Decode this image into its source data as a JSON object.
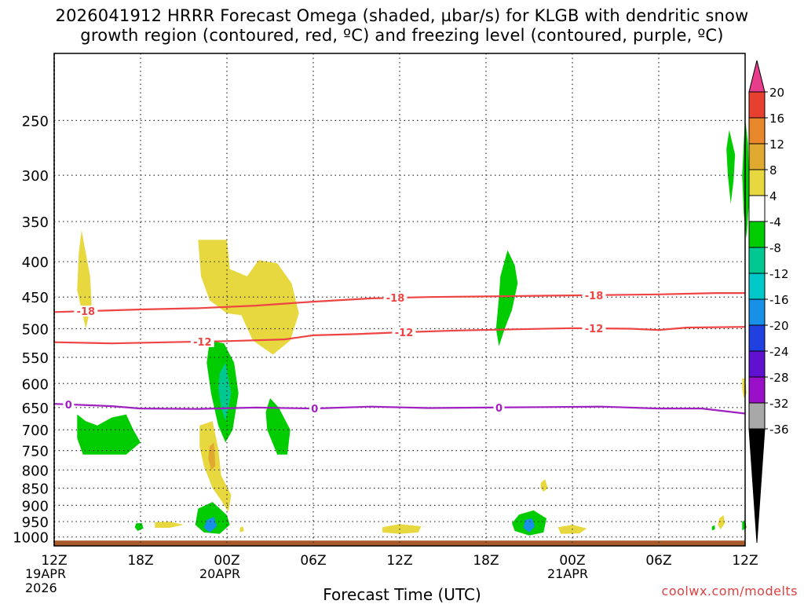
{
  "title_line1": "2026041912 HRRR Forecast Omega (shaded, µbar/s) for KLGB with dendritic snow",
  "title_line2": "growth region (contoured, red, ºC) and freezing level (contoured, purple, ºC)",
  "xlabel": "Forecast Time (UTC)",
  "credit": "coolwx.com/modelts",
  "date_labels": [
    {
      "line1": "19APR",
      "line2": "2026"
    },
    {
      "line1": "20APR",
      "line2": ""
    },
    {
      "line1": "21APR",
      "line2": ""
    }
  ],
  "chart_data": {
    "type": "heatmap",
    "x_unit": "forecast hour",
    "xlim": [
      0,
      48
    ],
    "xticks": [
      {
        "x": 0,
        "label": "12Z"
      },
      {
        "x": 6,
        "label": "18Z"
      },
      {
        "x": 12,
        "label": "00Z"
      },
      {
        "x": 18,
        "label": "06Z"
      },
      {
        "x": 24,
        "label": "12Z"
      },
      {
        "x": 30,
        "label": "18Z"
      },
      {
        "x": 36,
        "label": "00Z"
      },
      {
        "x": 42,
        "label": "06Z"
      },
      {
        "x": 48,
        "label": "12Z"
      }
    ],
    "y_unit": "hPa",
    "yscale": "log",
    "ylim": [
      1030,
      200
    ],
    "yticks": [
      250,
      300,
      350,
      400,
      450,
      500,
      550,
      600,
      650,
      700,
      750,
      800,
      850,
      900,
      950,
      1000
    ],
    "grid": true,
    "colorbar": {
      "levels": [
        20,
        16,
        12,
        8,
        4,
        -4,
        -8,
        -12,
        -16,
        -20,
        -24,
        -28,
        -32,
        -36
      ],
      "colors": [
        "#e83c8c",
        "#e84030",
        "#e8882a",
        "#e0aa30",
        "#e8d840",
        "#ffffff",
        "#00cc00",
        "#00c890",
        "#00c8c8",
        "#1890e8",
        "#2040e0",
        "#6010d0",
        "#9a10c8",
        "#a8a8a8",
        "#000000"
      ]
    },
    "contours": [
      {
        "label": "-18",
        "color": "#ee4444",
        "points": [
          [
            0,
            473
          ],
          [
            3,
            471
          ],
          [
            6,
            469
          ],
          [
            10,
            467
          ],
          [
            14,
            463
          ],
          [
            18,
            457
          ],
          [
            22,
            452
          ],
          [
            26,
            450
          ],
          [
            30,
            449
          ],
          [
            34,
            448
          ],
          [
            38,
            447
          ],
          [
            42,
            446
          ],
          [
            46,
            444
          ],
          [
            48,
            444
          ]
        ],
        "label_x": [
          2.2,
          23.7,
          37.5
        ]
      },
      {
        "label": "-12",
        "color": "#ee4444",
        "points": [
          [
            0,
            523
          ],
          [
            4,
            525
          ],
          [
            8,
            523
          ],
          [
            12,
            521
          ],
          [
            16,
            518
          ],
          [
            18,
            511
          ],
          [
            21,
            509
          ],
          [
            24,
            506
          ],
          [
            28,
            503
          ],
          [
            32,
            501
          ],
          [
            36,
            499
          ],
          [
            40,
            500
          ],
          [
            42,
            502
          ],
          [
            44,
            498
          ],
          [
            48,
            497
          ]
        ],
        "label_x": [
          10.3,
          24.3,
          37.5
        ]
      },
      {
        "label": "0",
        "color": "#a020c0",
        "points": [
          [
            0,
            642
          ],
          [
            4,
            647
          ],
          [
            6,
            652
          ],
          [
            10,
            653
          ],
          [
            14,
            650
          ],
          [
            18,
            652
          ],
          [
            22,
            648
          ],
          [
            26,
            651
          ],
          [
            30,
            650
          ],
          [
            34,
            649
          ],
          [
            38,
            648
          ],
          [
            42,
            652
          ],
          [
            45,
            652
          ],
          [
            48,
            663
          ]
        ],
        "label_x": [
          1,
          18.1,
          30.9
        ]
      }
    ],
    "omega_areas": [
      {
        "color": "#e8d840",
        "points": [
          [
            1.9,
            360
          ],
          [
            2.5,
            420
          ],
          [
            2.6,
            460
          ],
          [
            2.2,
            500
          ],
          [
            1.6,
            440
          ],
          [
            1.7,
            390
          ]
        ]
      },
      {
        "color": "#e8d840",
        "points": [
          [
            10.0,
            372
          ],
          [
            12.0,
            372
          ],
          [
            12.2,
            410
          ],
          [
            13.4,
            420
          ],
          [
            14.2,
            398
          ],
          [
            15.5,
            402
          ],
          [
            16.5,
            430
          ],
          [
            17.0,
            475
          ],
          [
            16.4,
            520
          ],
          [
            15.2,
            545
          ],
          [
            13.8,
            520
          ],
          [
            13.0,
            478
          ],
          [
            12.0,
            475
          ],
          [
            10.8,
            455
          ],
          [
            10.2,
            420
          ]
        ]
      },
      {
        "color": "#e8d840",
        "points": [
          [
            10.1,
            690
          ],
          [
            11.0,
            680
          ],
          [
            11.4,
            745
          ],
          [
            11.6,
            815
          ],
          [
            12.3,
            870
          ],
          [
            12.1,
            920
          ],
          [
            11.6,
            885
          ],
          [
            11.0,
            850
          ],
          [
            10.4,
            790
          ],
          [
            10.1,
            740
          ]
        ]
      },
      {
        "color": "#e0aa30",
        "points": [
          [
            10.8,
            740
          ],
          [
            11.1,
            730
          ],
          [
            11.2,
            790
          ],
          [
            10.9,
            800
          ],
          [
            10.7,
            770
          ]
        ]
      },
      {
        "color": "#00cc00",
        "points": [
          [
            10.8,
            520
          ],
          [
            11.8,
            525
          ],
          [
            12.5,
            560
          ],
          [
            12.8,
            620
          ],
          [
            12.4,
            700
          ],
          [
            11.9,
            730
          ],
          [
            11.4,
            690
          ],
          [
            10.9,
            620
          ],
          [
            10.6,
            560
          ]
        ]
      },
      {
        "color": "#00c890",
        "points": [
          [
            11.5,
            580
          ],
          [
            11.9,
            560
          ],
          [
            12.3,
            620
          ],
          [
            11.9,
            680
          ],
          [
            11.6,
            650
          ],
          [
            11.4,
            610
          ]
        ]
      },
      {
        "color": "#00cc00",
        "points": [
          [
            15.0,
            630
          ],
          [
            15.6,
            650
          ],
          [
            16.4,
            700
          ],
          [
            16.2,
            760
          ],
          [
            15.5,
            760
          ],
          [
            14.8,
            700
          ],
          [
            14.7,
            660
          ]
        ]
      },
      {
        "color": "#00cc00",
        "points": [
          [
            1.6,
            665
          ],
          [
            2.2,
            680
          ],
          [
            3.0,
            690
          ],
          [
            4.0,
            672
          ],
          [
            5.0,
            665
          ],
          [
            5.5,
            700
          ],
          [
            6.0,
            730
          ],
          [
            5.0,
            760
          ],
          [
            3.5,
            760
          ],
          [
            2.0,
            760
          ],
          [
            1.6,
            720
          ]
        ]
      },
      {
        "color": "#00cc00",
        "points": [
          [
            31.5,
            385
          ],
          [
            32.0,
            405
          ],
          [
            32.2,
            430
          ],
          [
            31.8,
            470
          ],
          [
            31.3,
            500
          ],
          [
            30.9,
            530
          ],
          [
            30.7,
            500
          ],
          [
            30.9,
            450
          ],
          [
            31.0,
            420
          ]
        ]
      },
      {
        "color": "#00cc00",
        "points": [
          [
            46.9,
            258
          ],
          [
            47.3,
            280
          ],
          [
            47.2,
            305
          ],
          [
            47.0,
            330
          ],
          [
            46.8,
            300
          ],
          [
            46.7,
            275
          ]
        ]
      },
      {
        "color": "#00cc00",
        "points": [
          [
            48.0,
            248
          ],
          [
            48.2,
            270
          ],
          [
            48.3,
            320
          ],
          [
            48.1,
            370
          ],
          [
            47.9,
            340
          ],
          [
            47.8,
            300
          ],
          [
            47.9,
            270
          ]
        ]
      },
      {
        "color": "#00cc00",
        "points": [
          [
            10.0,
            910
          ],
          [
            11.0,
            890
          ],
          [
            12.0,
            930
          ],
          [
            12.2,
            960
          ],
          [
            11.5,
            990
          ],
          [
            10.4,
            985
          ],
          [
            9.8,
            960
          ]
        ]
      },
      {
        "color": "#1890e8",
        "points": [
          [
            10.6,
            945
          ],
          [
            11.1,
            935
          ],
          [
            11.3,
            965
          ],
          [
            10.8,
            985
          ],
          [
            10.4,
            970
          ]
        ]
      },
      {
        "color": "#00cc00",
        "points": [
          [
            32.3,
            928
          ],
          [
            33.3,
            915
          ],
          [
            34.2,
            940
          ],
          [
            34.0,
            985
          ],
          [
            33.0,
            995
          ],
          [
            32.0,
            980
          ],
          [
            31.8,
            955
          ]
        ]
      },
      {
        "color": "#1890e8",
        "points": [
          [
            32.7,
            945
          ],
          [
            33.2,
            940
          ],
          [
            33.4,
            965
          ],
          [
            33.0,
            985
          ],
          [
            32.6,
            970
          ]
        ]
      },
      {
        "color": "#00cc00",
        "points": [
          [
            5.7,
            955
          ],
          [
            6.1,
            955
          ],
          [
            6.2,
            972
          ],
          [
            5.8,
            980
          ],
          [
            5.6,
            968
          ]
        ]
      },
      {
        "color": "#e8d840",
        "points": [
          [
            7.0,
            952
          ],
          [
            8.0,
            950
          ],
          [
            9.0,
            960
          ],
          [
            8.0,
            970
          ],
          [
            7.0,
            970
          ]
        ]
      },
      {
        "color": "#e8d840",
        "points": [
          [
            22.8,
            968
          ],
          [
            24.0,
            958
          ],
          [
            25.5,
            965
          ],
          [
            25.3,
            985
          ],
          [
            24.0,
            990
          ],
          [
            22.8,
            985
          ]
        ]
      },
      {
        "color": "#e8d840",
        "points": [
          [
            35.0,
            968
          ],
          [
            36.0,
            960
          ],
          [
            37.0,
            972
          ],
          [
            36.5,
            988
          ],
          [
            35.2,
            990
          ]
        ]
      },
      {
        "color": "#e8d840",
        "points": [
          [
            33.8,
            835
          ],
          [
            34.1,
            825
          ],
          [
            34.3,
            850
          ],
          [
            34.0,
            860
          ],
          [
            33.8,
            850
          ]
        ]
      },
      {
        "color": "#e8d840",
        "points": [
          [
            46.2,
            940
          ],
          [
            46.5,
            930
          ],
          [
            46.6,
            955
          ],
          [
            46.3,
            975
          ],
          [
            46.1,
            960
          ]
        ]
      },
      {
        "color": "#e8d840",
        "points": [
          [
            12.9,
            970
          ],
          [
            13.1,
            965
          ],
          [
            13.2,
            980
          ],
          [
            12.9,
            985
          ]
        ]
      },
      {
        "color": "#00cc00",
        "points": [
          [
            47.8,
            950
          ],
          [
            48.0,
            945
          ],
          [
            48.1,
            970
          ],
          [
            47.8,
            978
          ]
        ]
      },
      {
        "color": "#00cc00",
        "points": [
          [
            45.7,
            965
          ],
          [
            45.9,
            962
          ],
          [
            45.9,
            975
          ],
          [
            45.7,
            978
          ]
        ]
      },
      {
        "color": "#e8d840",
        "points": [
          [
            47.8,
            590
          ],
          [
            48.0,
            590
          ],
          [
            48.1,
            620
          ],
          [
            47.9,
            630
          ],
          [
            47.8,
            610
          ]
        ]
      }
    ],
    "terrain": {
      "color": "#a85a2a",
      "top_hpa": 1012
    }
  }
}
